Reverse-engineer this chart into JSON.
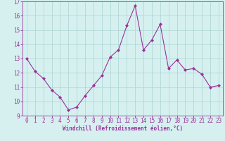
{
  "x": [
    0,
    1,
    2,
    3,
    4,
    5,
    6,
    7,
    8,
    9,
    10,
    11,
    12,
    13,
    14,
    15,
    16,
    17,
    18,
    19,
    20,
    21,
    22,
    23
  ],
  "y": [
    13.0,
    12.1,
    11.6,
    10.8,
    10.3,
    9.4,
    9.6,
    10.4,
    11.1,
    11.8,
    13.1,
    13.6,
    15.3,
    16.7,
    13.6,
    14.3,
    15.4,
    12.3,
    12.9,
    12.2,
    12.3,
    11.9,
    11.0,
    11.1
  ],
  "line_color": "#993399",
  "marker": "D",
  "marker_size": 2.0,
  "bg_color": "#d6f0f0",
  "grid_color": "#b0d8d8",
  "xlabel": "Windchill (Refroidissement éolien,°C)",
  "xlabel_color": "#993399",
  "tick_color": "#993399",
  "spine_color": "#993399",
  "xlim": [
    -0.5,
    23.5
  ],
  "ylim": [
    9,
    17
  ],
  "yticks": [
    9,
    10,
    11,
    12,
    13,
    14,
    15,
    16,
    17
  ],
  "xticks": [
    0,
    1,
    2,
    3,
    4,
    5,
    6,
    7,
    8,
    9,
    10,
    11,
    12,
    13,
    14,
    15,
    16,
    17,
    18,
    19,
    20,
    21,
    22,
    23
  ],
  "tick_fontsize": 5.5,
  "xlabel_fontsize": 5.5
}
